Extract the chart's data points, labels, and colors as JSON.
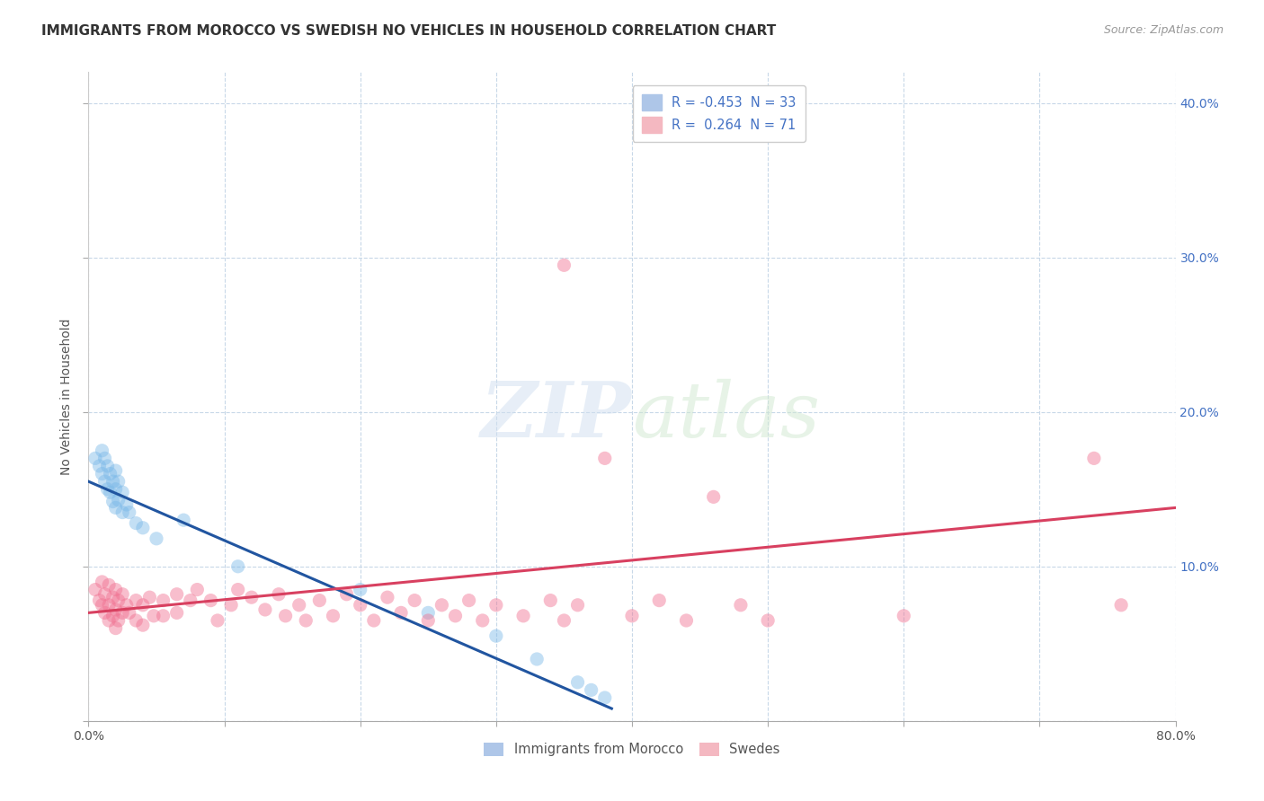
{
  "title": "IMMIGRANTS FROM MOROCCO VS SWEDISH NO VEHICLES IN HOUSEHOLD CORRELATION CHART",
  "source_text": "Source: ZipAtlas.com",
  "ylabel": "No Vehicles in Household",
  "xlim": [
    0.0,
    0.8
  ],
  "ylim": [
    0.0,
    0.42
  ],
  "x_ticks": [
    0.0,
    0.1,
    0.2,
    0.3,
    0.4,
    0.5,
    0.6,
    0.7,
    0.8
  ],
  "y_ticks": [
    0.0,
    0.1,
    0.2,
    0.3,
    0.4
  ],
  "legend_entries": [
    {
      "label": "R = -0.453  N = 33",
      "color": "#aec6e8"
    },
    {
      "label": "R =  0.264  N = 71",
      "color": "#f4b8c1"
    }
  ],
  "legend_bottom": [
    "Immigrants from Morocco",
    "Swedes"
  ],
  "watermark": "ZIPatlas",
  "blue_scatter": [
    [
      0.005,
      0.17
    ],
    [
      0.008,
      0.165
    ],
    [
      0.01,
      0.175
    ],
    [
      0.01,
      0.16
    ],
    [
      0.012,
      0.17
    ],
    [
      0.012,
      0.155
    ],
    [
      0.014,
      0.165
    ],
    [
      0.014,
      0.15
    ],
    [
      0.016,
      0.16
    ],
    [
      0.016,
      0.148
    ],
    [
      0.018,
      0.155
    ],
    [
      0.018,
      0.142
    ],
    [
      0.02,
      0.162
    ],
    [
      0.02,
      0.15
    ],
    [
      0.02,
      0.138
    ],
    [
      0.022,
      0.155
    ],
    [
      0.022,
      0.143
    ],
    [
      0.025,
      0.148
    ],
    [
      0.025,
      0.135
    ],
    [
      0.028,
      0.14
    ],
    [
      0.03,
      0.135
    ],
    [
      0.035,
      0.128
    ],
    [
      0.04,
      0.125
    ],
    [
      0.05,
      0.118
    ],
    [
      0.07,
      0.13
    ],
    [
      0.11,
      0.1
    ],
    [
      0.2,
      0.085
    ],
    [
      0.25,
      0.07
    ],
    [
      0.3,
      0.055
    ],
    [
      0.33,
      0.04
    ],
    [
      0.36,
      0.025
    ],
    [
      0.37,
      0.02
    ],
    [
      0.38,
      0.015
    ]
  ],
  "pink_scatter": [
    [
      0.005,
      0.085
    ],
    [
      0.008,
      0.078
    ],
    [
      0.01,
      0.09
    ],
    [
      0.01,
      0.075
    ],
    [
      0.012,
      0.082
    ],
    [
      0.012,
      0.07
    ],
    [
      0.015,
      0.088
    ],
    [
      0.015,
      0.075
    ],
    [
      0.015,
      0.065
    ],
    [
      0.018,
      0.08
    ],
    [
      0.018,
      0.068
    ],
    [
      0.02,
      0.085
    ],
    [
      0.02,
      0.072
    ],
    [
      0.02,
      0.06
    ],
    [
      0.022,
      0.078
    ],
    [
      0.022,
      0.065
    ],
    [
      0.025,
      0.082
    ],
    [
      0.025,
      0.07
    ],
    [
      0.028,
      0.075
    ],
    [
      0.03,
      0.07
    ],
    [
      0.035,
      0.078
    ],
    [
      0.035,
      0.065
    ],
    [
      0.04,
      0.075
    ],
    [
      0.04,
      0.062
    ],
    [
      0.045,
      0.08
    ],
    [
      0.048,
      0.068
    ],
    [
      0.055,
      0.078
    ],
    [
      0.055,
      0.068
    ],
    [
      0.065,
      0.082
    ],
    [
      0.065,
      0.07
    ],
    [
      0.075,
      0.078
    ],
    [
      0.08,
      0.085
    ],
    [
      0.09,
      0.078
    ],
    [
      0.095,
      0.065
    ],
    [
      0.105,
      0.075
    ],
    [
      0.11,
      0.085
    ],
    [
      0.12,
      0.08
    ],
    [
      0.13,
      0.072
    ],
    [
      0.14,
      0.082
    ],
    [
      0.145,
      0.068
    ],
    [
      0.155,
      0.075
    ],
    [
      0.16,
      0.065
    ],
    [
      0.17,
      0.078
    ],
    [
      0.18,
      0.068
    ],
    [
      0.19,
      0.082
    ],
    [
      0.2,
      0.075
    ],
    [
      0.21,
      0.065
    ],
    [
      0.22,
      0.08
    ],
    [
      0.23,
      0.07
    ],
    [
      0.24,
      0.078
    ],
    [
      0.25,
      0.065
    ],
    [
      0.26,
      0.075
    ],
    [
      0.27,
      0.068
    ],
    [
      0.28,
      0.078
    ],
    [
      0.29,
      0.065
    ],
    [
      0.3,
      0.075
    ],
    [
      0.32,
      0.068
    ],
    [
      0.34,
      0.078
    ],
    [
      0.35,
      0.065
    ],
    [
      0.36,
      0.075
    ],
    [
      0.38,
      0.17
    ],
    [
      0.35,
      0.295
    ],
    [
      0.4,
      0.068
    ],
    [
      0.42,
      0.078
    ],
    [
      0.44,
      0.065
    ],
    [
      0.46,
      0.145
    ],
    [
      0.48,
      0.075
    ],
    [
      0.5,
      0.065
    ],
    [
      0.6,
      0.068
    ],
    [
      0.74,
      0.17
    ],
    [
      0.76,
      0.075
    ]
  ],
  "blue_line": [
    [
      0.0,
      0.155
    ],
    [
      0.385,
      0.008
    ]
  ],
  "pink_line": [
    [
      0.0,
      0.07
    ],
    [
      0.8,
      0.138
    ]
  ],
  "scatter_size": 120,
  "scatter_alpha": 0.45,
  "line_width": 2.2,
  "blue_color": "#7ab8e8",
  "pink_color": "#f07090",
  "blue_line_color": "#2155a0",
  "pink_line_color": "#d84060",
  "grid_color": "#c8d8e8",
  "background_color": "#ffffff",
  "title_fontsize": 11,
  "axis_label_fontsize": 10,
  "tick_fontsize": 10,
  "source_fontsize": 9
}
